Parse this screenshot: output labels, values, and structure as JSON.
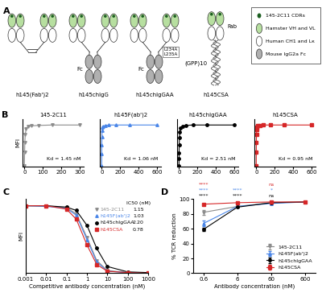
{
  "panel_labels": [
    "A",
    "B",
    "C",
    "D"
  ],
  "diagram": {
    "constructs": [
      {
        "name": "h145(Fab')2",
        "fab_arms": 2,
        "fc": false
      },
      {
        "name": "h145chIgG",
        "fab_arms": 2,
        "fc": true,
        "fc_label": "Fc"
      },
      {
        "name": "h145chIgGAA",
        "fab_arms": 2,
        "fc": true,
        "fc_label": "Fc",
        "mutations": [
          "L234A",
          "L235A"
        ]
      },
      {
        "name": "h145CSA",
        "fab_arms": 1,
        "fc": false,
        "fab_label": "Fab",
        "stalk_label": "(GPP)10"
      }
    ],
    "legend": [
      {
        "text": "145-2C11 CDRs",
        "color": "#1b5e20"
      },
      {
        "text": "Hamster VH and VL",
        "color": "#b7dfa0"
      },
      {
        "text": "Human CH1 and Lκ",
        "color": "#ffffff"
      },
      {
        "text": "Mouse IgG2a Fc",
        "color": "#b0b0b0"
      }
    ]
  },
  "chart_data": [
    {
      "type": "line",
      "title": "145-2C11",
      "annotation": "Kd = 1.45 nM",
      "y_label": "MFI",
      "x": [
        0,
        1.2,
        2.3,
        4.7,
        9.4,
        19,
        38,
        75,
        150,
        300
      ],
      "values": [
        2,
        35,
        58,
        78,
        90,
        96,
        98,
        99,
        100,
        100
      ],
      "color": "#8c8c8c",
      "marker": "triangle_down",
      "xlim": [
        -10,
        320
      ],
      "xticks": [
        0,
        100,
        200,
        300
      ],
      "ylim": [
        0,
        115
      ],
      "tick_labels": "x"
    },
    {
      "type": "line",
      "title": "h145F(ab')2",
      "annotation": "Kd = 1.06 nM",
      "x": [
        0,
        0.6,
        1.2,
        2.3,
        4.7,
        9.4,
        19,
        38,
        75,
        150,
        300,
        600
      ],
      "values": [
        2,
        30,
        52,
        72,
        86,
        94,
        97,
        99,
        100,
        100,
        100,
        100
      ],
      "color": "#4a86e8",
      "marker": "triangle_up",
      "xlim": [
        -20,
        640
      ],
      "xticks": [
        0,
        200,
        400,
        600
      ],
      "ylim": [
        0,
        115
      ],
      "tick_labels": "x"
    },
    {
      "type": "line",
      "title": "h145chIgGAA",
      "annotation": "Kd = 2.51 nM",
      "x": [
        0,
        0.6,
        1.2,
        2.3,
        4.7,
        9.4,
        19,
        38,
        75,
        150,
        300,
        600
      ],
      "values": [
        1,
        18,
        33,
        52,
        70,
        84,
        92,
        97,
        99,
        100,
        100,
        100
      ],
      "color": "#000000",
      "marker": "circle",
      "xlim": [
        -20,
        640
      ],
      "xticks": [
        0,
        200,
        400,
        600
      ],
      "ylim": [
        0,
        115
      ],
      "tick_labels": "x"
    },
    {
      "type": "line",
      "title": "h145CSA",
      "annotation": "Kd = 0.95 nM",
      "x": [
        0,
        0.6,
        1.2,
        2.3,
        4.7,
        9.4,
        19,
        38,
        75,
        150,
        300,
        600
      ],
      "values": [
        2,
        35,
        58,
        77,
        89,
        95,
        98,
        99,
        100,
        100,
        100,
        100
      ],
      "color": "#d62728",
      "marker": "square",
      "xlim": [
        -20,
        640
      ],
      "xticks": [
        0,
        200,
        400,
        600
      ],
      "ylim": [
        0,
        115
      ],
      "tick_labels": "x"
    },
    {
      "type": "line",
      "x_label": "Competitive antibody concentration (nM)",
      "y_label": "MFI",
      "log": "x",
      "legend_title": "IC50 (nM)",
      "x": [
        0.001,
        0.01,
        0.1,
        0.3,
        1,
        3,
        10,
        100,
        1000
      ],
      "series": [
        {
          "name": "145-2C11",
          "color": "#8c8c8c",
          "marker": "triangle_down",
          "ic50": 1.15,
          "ic50_label": "1.15",
          "values": [
            100,
            100,
            97,
            88,
            53,
            19,
            4,
            1,
            0
          ]
        },
        {
          "name": "h145F(ab')2",
          "color": "#4a86e8",
          "marker": "triangle_up",
          "ic50": 1.03,
          "ic50_label": "1.03",
          "values": [
            100,
            99,
            96,
            86,
            50,
            17,
            3,
            1,
            0
          ]
        },
        {
          "name": "h145chIgGAA",
          "color": "#000000",
          "marker": "circle",
          "ic50": 2.2,
          "ic50_label": "2.20",
          "values": [
            100,
            100,
            98,
            93,
            71,
            37,
            10,
            2,
            1
          ]
        },
        {
          "name": "h145CSA",
          "color": "#d62728",
          "marker": "square",
          "ic50": 0.78,
          "ic50_label": "0.78",
          "values": [
            100,
            100,
            95,
            80,
            42,
            13,
            3,
            1,
            0
          ]
        }
      ],
      "xlim": [
        0.001,
        1000
      ],
      "xticks": [
        0.001,
        0.01,
        0.1,
        1,
        10,
        100,
        1000
      ],
      "ylim": [
        0,
        110
      ],
      "tick_labels": "x"
    },
    {
      "type": "line",
      "x_label": "Antibody concentration (nM)",
      "y_label": "% TCR reduction",
      "log": "x",
      "legend": "lower right",
      "x": [
        0.6,
        6,
        60,
        600
      ],
      "series": [
        {
          "name": "145-2C11",
          "color": "#8c8c8c",
          "marker": "triangle_down",
          "values": [
            82,
            90,
            95,
            96
          ],
          "errors": [
            3,
            1,
            1,
            1
          ]
        },
        {
          "name": "h145F(ab')2",
          "color": "#4a86e8",
          "marker": "triangle_up",
          "values": [
            67,
            90,
            94,
            96
          ],
          "errors": [
            4,
            1,
            1,
            1
          ]
        },
        {
          "name": "h145chIgGAA",
          "color": "#000000",
          "marker": "circle",
          "values": [
            59,
            89,
            95,
            96
          ],
          "errors": [
            2,
            1,
            1,
            1
          ]
        },
        {
          "name": "h145CSA",
          "color": "#d62728",
          "marker": "square",
          "values": [
            93,
            95,
            96,
            96
          ],
          "errors": [
            1,
            1,
            1,
            1
          ]
        }
      ],
      "annotations": [
        {
          "x": 0.6,
          "series": "h145chIgGAA",
          "text": "****"
        },
        {
          "x": 0.6,
          "series": "h145F(ab')2",
          "text": "****"
        },
        {
          "x": 0.6,
          "series": "h145CSA",
          "text": "****"
        },
        {
          "x": 6,
          "series": "h145chIgGAA",
          "text": "****"
        },
        {
          "x": 6,
          "series": "h145F(ab')2",
          "text": "****"
        },
        {
          "x": 60,
          "series": "h145chIgGAA",
          "text": "ns"
        },
        {
          "x": 60,
          "series": "h145F(ab')2",
          "text": "*"
        },
        {
          "x": 60,
          "series": "h145CSA",
          "text": "ns"
        }
      ],
      "xlim": [
        0.3,
        1200
      ],
      "xticks": [
        0.6,
        6,
        60,
        600
      ],
      "ylim": [
        0,
        100
      ],
      "yticks": [
        0,
        20,
        40,
        60,
        80,
        100
      ]
    }
  ]
}
